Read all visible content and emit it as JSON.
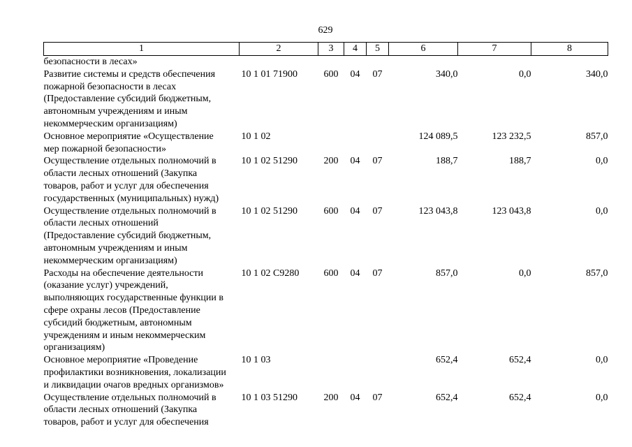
{
  "page": {
    "number": "629"
  },
  "colors": {
    "text": "#000000",
    "border": "#000000",
    "background": "#ffffff"
  },
  "table": {
    "header_labels": [
      "1",
      "2",
      "3",
      "4",
      "5",
      "6",
      "7",
      "8"
    ],
    "rows": [
      {
        "c1": "безопасности в лесах»",
        "c2": "",
        "c3": "",
        "c4": "",
        "c5": "",
        "c6": "",
        "c7": "",
        "c8": ""
      },
      {
        "c1": "Развитие системы и средств обеспечения пожарной безопасности в лесах (Предоставление субсидий бюджетным, автономным учреждениям и иным некоммерческим организациям)",
        "c2": "10 1 01 71900",
        "c3": "600",
        "c4": "04",
        "c5": "07",
        "c6": "340,0",
        "c7": "0,0",
        "c8": "340,0"
      },
      {
        "c1": "Основное мероприятие «Осуществление мер пожарной безопасности»",
        "c2": "10 1 02",
        "c3": "",
        "c4": "",
        "c5": "",
        "c6": "124 089,5",
        "c7": "123 232,5",
        "c8": "857,0"
      },
      {
        "c1": "Осуществление отдельных полномочий в области лесных отношений (Закупка товаров, работ и услуг для обеспечения государственных (муниципальных) нужд)",
        "c2": "10 1 02 51290",
        "c3": "200",
        "c4": "04",
        "c5": "07",
        "c6": "188,7",
        "c7": "188,7",
        "c8": "0,0"
      },
      {
        "c1": "Осуществление отдельных полномочий в области лесных отношений (Предоставление субсидий бюджетным, автономным учреждениям и иным некоммерческим организациям)",
        "c2": "10 1 02 51290",
        "c3": "600",
        "c4": "04",
        "c5": "07",
        "c6": "123 043,8",
        "c7": "123 043,8",
        "c8": "0,0"
      },
      {
        "c1": "Расходы на обеспечение деятельности (оказание услуг) учреждений, выполняющих государственные функции в сфере охраны лесов (Предоставление субсидий бюджетным, автономным учреждениям и иным некоммерческим организациям)",
        "c2": "10 1 02 С9280",
        "c3": "600",
        "c4": "04",
        "c5": "07",
        "c6": "857,0",
        "c7": "0,0",
        "c8": "857,0"
      },
      {
        "c1": "Основное мероприятие «Проведение профилактики возникновения, локализации и ликвидации очагов вредных организмов»",
        "c2": "10 1 03",
        "c3": "",
        "c4": "",
        "c5": "",
        "c6": "652,4",
        "c7": "652,4",
        "c8": "0,0"
      },
      {
        "c1": "Осуществление отдельных полномочий в области лесных отношений (Закупка товаров, работ и услуг для обеспечения",
        "c2": "10 1 03 51290",
        "c3": "200",
        "c4": "04",
        "c5": "07",
        "c6": "652,4",
        "c7": "652,4",
        "c8": "0,0"
      }
    ]
  }
}
